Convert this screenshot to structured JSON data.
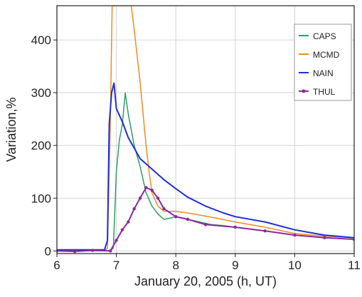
{
  "chart_data": {
    "type": "line",
    "xlabel": "January 20, 2005 (h, UT)",
    "ylabel": "Variation,%",
    "xlim": [
      6,
      11
    ],
    "ylim": [
      -5,
      465
    ],
    "xticks": [
      6,
      7,
      8,
      9,
      10,
      11
    ],
    "yticks": [
      0,
      100,
      200,
      300,
      400
    ],
    "grid": true,
    "legend_position": "top-right",
    "colors": {
      "CAPS": "#2e9e6a",
      "MCMD": "#f08a20",
      "NAIN": "#1f2fd6",
      "THUL": "#8a2a9e"
    },
    "series": [
      {
        "name": "CAPS",
        "points": [
          [
            6.0,
            0
          ],
          [
            6.5,
            0
          ],
          [
            6.8,
            0
          ],
          [
            6.88,
            0
          ],
          [
            6.95,
            5
          ],
          [
            7.0,
            150
          ],
          [
            7.05,
            210
          ],
          [
            7.1,
            240
          ],
          [
            7.15,
            300
          ],
          [
            7.2,
            260
          ],
          [
            7.3,
            200
          ],
          [
            7.4,
            160
          ],
          [
            7.5,
            110
          ],
          [
            7.6,
            85
          ],
          [
            7.7,
            70
          ],
          [
            7.8,
            60
          ],
          [
            7.9,
            62
          ],
          [
            8.0,
            65
          ],
          [
            8.2,
            60
          ],
          [
            8.4,
            55
          ],
          [
            8.6,
            50
          ],
          [
            8.8,
            48
          ],
          [
            9.0,
            45
          ],
          [
            9.5,
            38
          ],
          [
            10.0,
            30
          ],
          [
            10.5,
            25
          ],
          [
            11.0,
            22
          ]
        ]
      },
      {
        "name": "MCMD",
        "points": [
          [
            6.0,
            0
          ],
          [
            6.5,
            0
          ],
          [
            6.8,
            0
          ],
          [
            6.85,
            5
          ],
          [
            6.9,
            250
          ],
          [
            6.93,
            465
          ],
          [
            7.25,
            465
          ],
          [
            7.3,
            420
          ],
          [
            7.4,
            320
          ],
          [
            7.45,
            260
          ],
          [
            7.5,
            200
          ],
          [
            7.55,
            150
          ],
          [
            7.6,
            110
          ],
          [
            7.7,
            85
          ],
          [
            7.8,
            75
          ],
          [
            8.0,
            75
          ],
          [
            8.2,
            72
          ],
          [
            8.5,
            66
          ],
          [
            9.0,
            55
          ],
          [
            9.5,
            45
          ],
          [
            10.0,
            33
          ],
          [
            10.5,
            28
          ],
          [
            11.0,
            25
          ]
        ]
      },
      {
        "name": "NAIN",
        "points": [
          [
            6.0,
            2
          ],
          [
            6.5,
            2
          ],
          [
            6.8,
            2
          ],
          [
            6.85,
            20
          ],
          [
            6.88,
            240
          ],
          [
            6.92,
            300
          ],
          [
            6.96,
            318
          ],
          [
            7.0,
            270
          ],
          [
            7.1,
            245
          ],
          [
            7.2,
            215
          ],
          [
            7.3,
            195
          ],
          [
            7.4,
            175
          ],
          [
            7.6,
            155
          ],
          [
            7.8,
            135
          ],
          [
            8.0,
            118
          ],
          [
            8.2,
            102
          ],
          [
            8.5,
            85
          ],
          [
            8.8,
            72
          ],
          [
            9.0,
            65
          ],
          [
            9.5,
            55
          ],
          [
            10.0,
            40
          ],
          [
            10.5,
            30
          ],
          [
            11.0,
            25
          ]
        ]
      },
      {
        "name": "THUL",
        "points": [
          [
            6.0,
            0
          ],
          [
            6.3,
            -1
          ],
          [
            6.6,
            1
          ],
          [
            6.9,
            0
          ],
          [
            7.0,
            20
          ],
          [
            7.1,
            40
          ],
          [
            7.2,
            55
          ],
          [
            7.3,
            80
          ],
          [
            7.4,
            100
          ],
          [
            7.5,
            120
          ],
          [
            7.6,
            115
          ],
          [
            7.7,
            100
          ],
          [
            7.8,
            80
          ],
          [
            8.0,
            65
          ],
          [
            8.2,
            60
          ],
          [
            8.5,
            50
          ],
          [
            9.0,
            45
          ],
          [
            9.5,
            38
          ],
          [
            10.0,
            30
          ],
          [
            10.5,
            25
          ],
          [
            11.0,
            22
          ]
        ]
      }
    ]
  }
}
